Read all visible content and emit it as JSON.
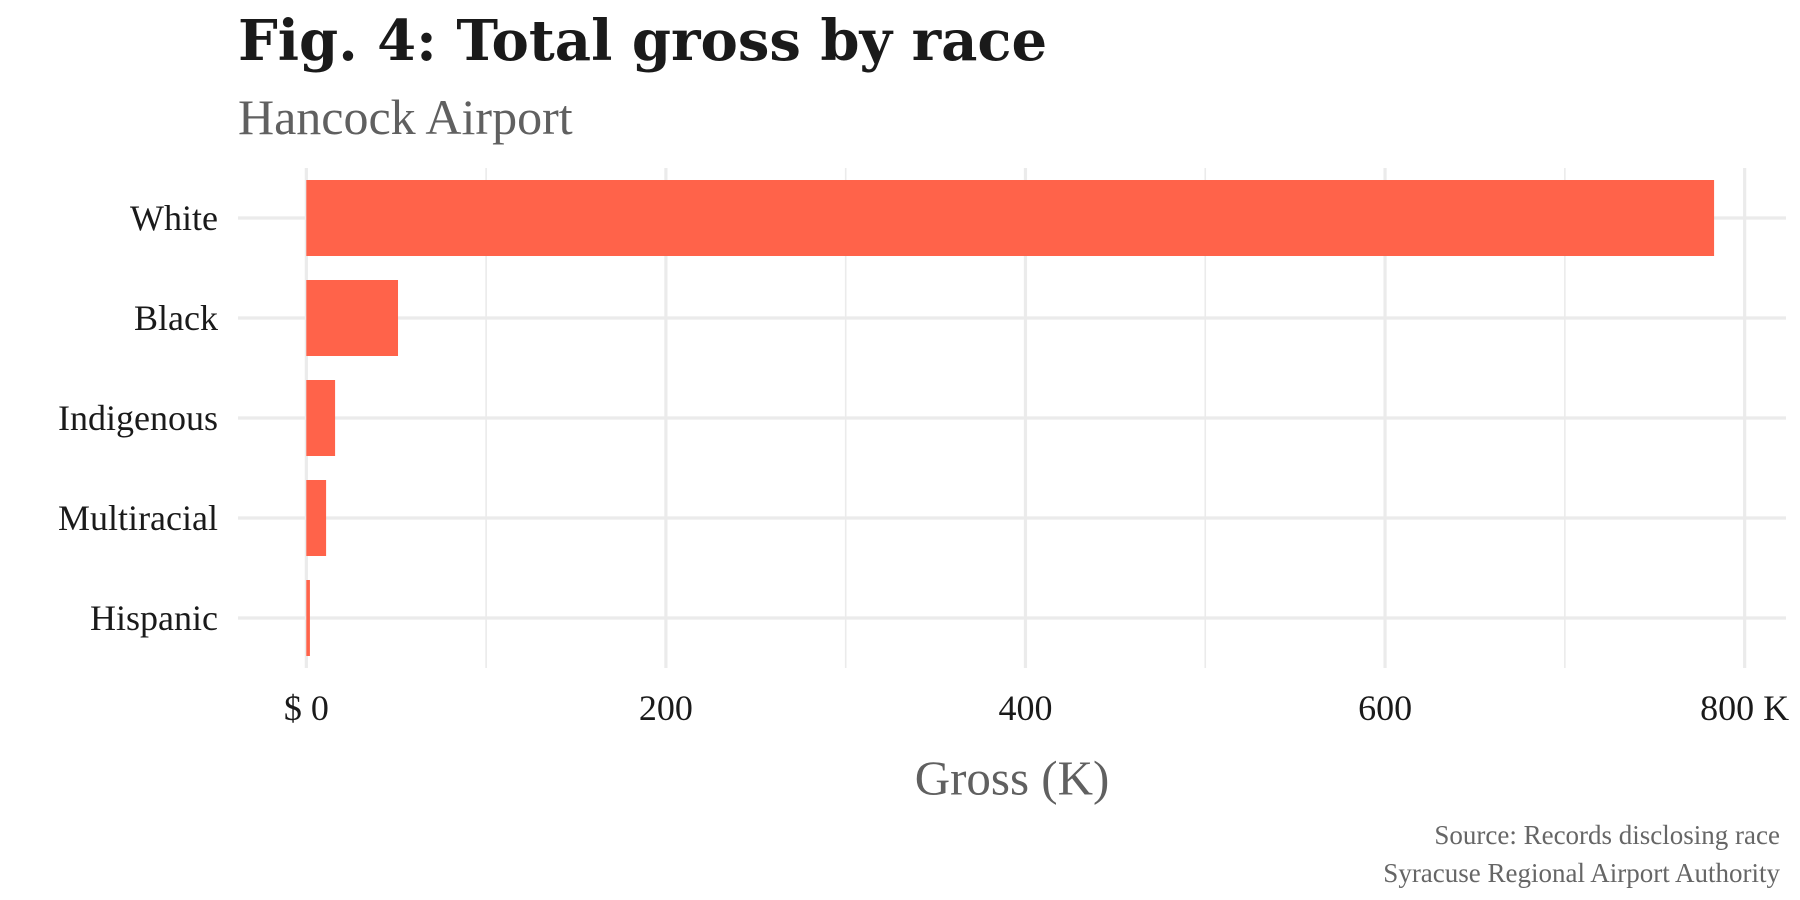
{
  "chart_data": {
    "type": "bar",
    "orientation": "horizontal",
    "title": "Fig. 4: Total gross by race",
    "subtitle": "Hancock Airport",
    "xlabel": "Gross (K)",
    "ylabel": "",
    "categories": [
      "White",
      "Black",
      "Indigenous",
      "Multiracial",
      "Hispanic"
    ],
    "values": [
      783,
      51,
      16,
      11,
      2
    ],
    "xlim": [
      -38,
      823
    ],
    "x_ticks": [
      0,
      200,
      400,
      600,
      800
    ],
    "x_tick_labels": [
      "$ 0",
      "200",
      "400",
      "600",
      "800 K"
    ],
    "grid": true,
    "legend": "none",
    "bar_color": "#ff634a",
    "grid_color": "#ebebeb",
    "captions": [
      "Source: Records disclosing race",
      "Syracuse Regional Airport Authority"
    ]
  }
}
